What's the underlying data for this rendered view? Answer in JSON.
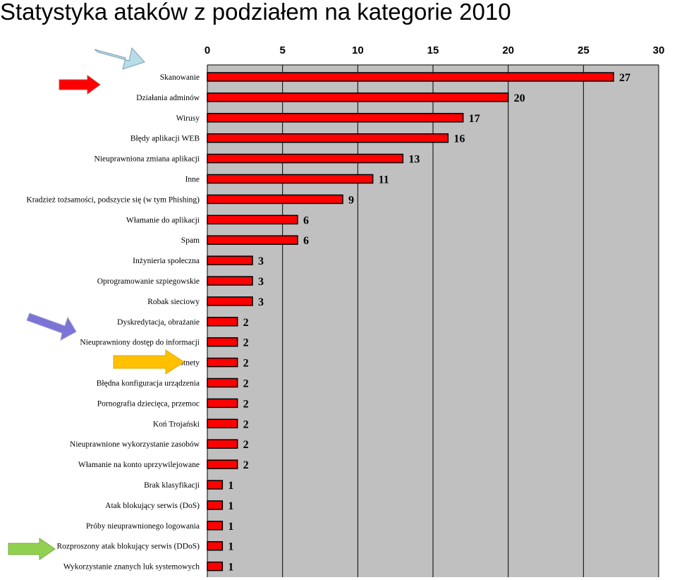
{
  "title": "Statystyka ataków z podziałem na kategorie 2010",
  "colors": {
    "bar": "#ff0000",
    "bar_stroke": "#000000",
    "plot_background": "#c0c0c0",
    "arrow_light_blue": "#b7dde8",
    "arrow_red": "#ff0000",
    "arrow_purple": "#7b73d6",
    "arrow_yellow": "#ffc000",
    "arrow_green": "#92d050"
  },
  "chart_data": {
    "type": "bar",
    "orientation": "horizontal",
    "xlim": [
      0,
      30
    ],
    "x_ticks": [
      "0",
      "5",
      "10",
      "15",
      "20",
      "25",
      "30"
    ],
    "x_axis_position": "top",
    "grid": true,
    "legend": "none",
    "categories": [
      "Skanowanie",
      "Działania adminów",
      "Wirusy",
      "Błędy aplikacji WEB",
      "Nieuprawniona zmiana aplikacji",
      "Inne",
      "Kradzież tożsamości, podszycie się (w tym Phishing)",
      "Włamanie do aplikacji",
      "Spam",
      "Inżynieria społeczna",
      "Oprogramowanie szpiegowskie",
      "Robak sieciowy",
      "Dyskredytacja, obrażanie",
      "Nieuprawniony dostęp do informacji",
      "Botnety",
      "Błędna konfiguracja urządzenia",
      "Pornografia dziecięca, przemoc",
      "Koń Trojański",
      "Nieuprawnione wykorzystanie zasobów",
      "Włamanie na konto uprzywilejowane",
      "Brak klasyfikacji",
      "Atak blokujący serwis (DoS)",
      "Próby nieuprawnionego logowania",
      "Rozproszony atak blokujący serwis (DDoS)",
      "Wykorzystanie znanych luk systemowych"
    ],
    "values": [
      27,
      20,
      17,
      16,
      13,
      11,
      9,
      6,
      6,
      3,
      3,
      3,
      2,
      2,
      2,
      2,
      2,
      2,
      2,
      2,
      1,
      1,
      1,
      1,
      1
    ],
    "data_labels": [
      "27",
      "20",
      "17",
      "16",
      "13",
      "11",
      "9",
      "6",
      "6",
      "3",
      "3",
      "3",
      "2",
      "2",
      "2",
      "2",
      "2",
      "2",
      "2",
      "2",
      "1",
      "1",
      "1",
      "1",
      "1"
    ]
  }
}
